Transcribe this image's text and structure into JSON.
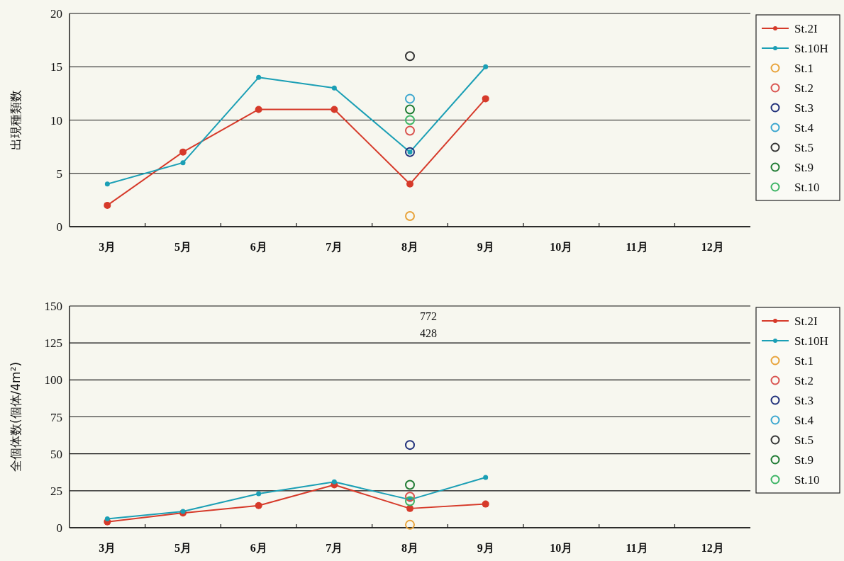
{
  "chart_data": [
    {
      "type": "line",
      "ylabel": "出現種類数",
      "categories": [
        "3月",
        "5月",
        "6月",
        "7月",
        "8月",
        "9月",
        "10月",
        "11月",
        "12月"
      ],
      "ylim": [
        0,
        20
      ],
      "yticks": [
        0,
        5,
        10,
        15,
        20
      ],
      "grid": "y",
      "legend": "right",
      "marker": "circle",
      "series": [
        {
          "name": "St.2I",
          "color": "#d63a2a",
          "values": [
            2,
            7,
            11,
            11,
            4,
            12,
            null,
            null,
            null
          ]
        },
        {
          "name": "St.10H",
          "color": "#1b9fb5",
          "values": [
            4,
            6,
            14,
            13,
            7,
            15,
            null,
            null,
            null
          ]
        },
        {
          "name": "St.1",
          "type": "scatter",
          "color": "#e8a33a",
          "x": [
            "8月"
          ],
          "values": [
            1
          ]
        },
        {
          "name": "St.2",
          "type": "scatter",
          "color": "#d9534f",
          "x": [
            "8月"
          ],
          "values": [
            9
          ]
        },
        {
          "name": "St.3",
          "type": "scatter",
          "color": "#1f2f7a",
          "x": [
            "8月"
          ],
          "values": [
            7
          ]
        },
        {
          "name": "St.4",
          "type": "scatter",
          "color": "#3aa6cf",
          "x": [
            "8月"
          ],
          "values": [
            12
          ]
        },
        {
          "name": "St.5",
          "type": "scatter",
          "color": "#333333",
          "x": [
            "8月"
          ],
          "values": [
            16
          ]
        },
        {
          "name": "St.9",
          "type": "scatter",
          "color": "#1e7a32",
          "x": [
            "8月"
          ],
          "values": [
            11
          ]
        },
        {
          "name": "St.10",
          "type": "scatter",
          "color": "#3cb464",
          "x": [
            "8月"
          ],
          "values": [
            10
          ]
        }
      ]
    },
    {
      "type": "line",
      "ylabel": "全個体数(個体/4m²)",
      "categories": [
        "3月",
        "5月",
        "6月",
        "7月",
        "8月",
        "9月",
        "10月",
        "11月",
        "12月"
      ],
      "ylim": [
        0,
        150
      ],
      "yticks": [
        0,
        25,
        50,
        75,
        100,
        125,
        150
      ],
      "grid": "y",
      "legend": "right",
      "marker": "circle",
      "series": [
        {
          "name": "St.2I",
          "color": "#d63a2a",
          "values": [
            4,
            10,
            15,
            29,
            13,
            16,
            null,
            null,
            null
          ]
        },
        {
          "name": "St.10H",
          "color": "#1b9fb5",
          "values": [
            6,
            11,
            23,
            31,
            19,
            34,
            null,
            null,
            null
          ]
        },
        {
          "name": "St.1",
          "type": "scatter",
          "color": "#e8a33a",
          "x": [
            "8月"
          ],
          "values": [
            2
          ]
        },
        {
          "name": "St.2",
          "type": "scatter",
          "color": "#d9534f",
          "x": [
            "8月"
          ],
          "values": [
            21
          ]
        },
        {
          "name": "St.3",
          "type": "scatter",
          "color": "#1f2f7a",
          "x": [
            "8月"
          ],
          "values": [
            56
          ]
        },
        {
          "name": "St.4",
          "type": "scatter",
          "color": "#3aa6cf",
          "x": [
            "8月"
          ],
          "values": [
            null
          ]
        },
        {
          "name": "St.5",
          "type": "scatter",
          "color": "#333333",
          "x": [
            "8月"
          ],
          "values": [
            null
          ]
        },
        {
          "name": "St.9",
          "type": "scatter",
          "color": "#1e7a32",
          "x": [
            "8月"
          ],
          "values": [
            29
          ]
        },
        {
          "name": "St.10",
          "type": "scatter",
          "color": "#3cb464",
          "x": [
            "8月"
          ],
          "values": [
            18
          ]
        }
      ],
      "annotations": [
        "772",
        "428"
      ]
    }
  ]
}
